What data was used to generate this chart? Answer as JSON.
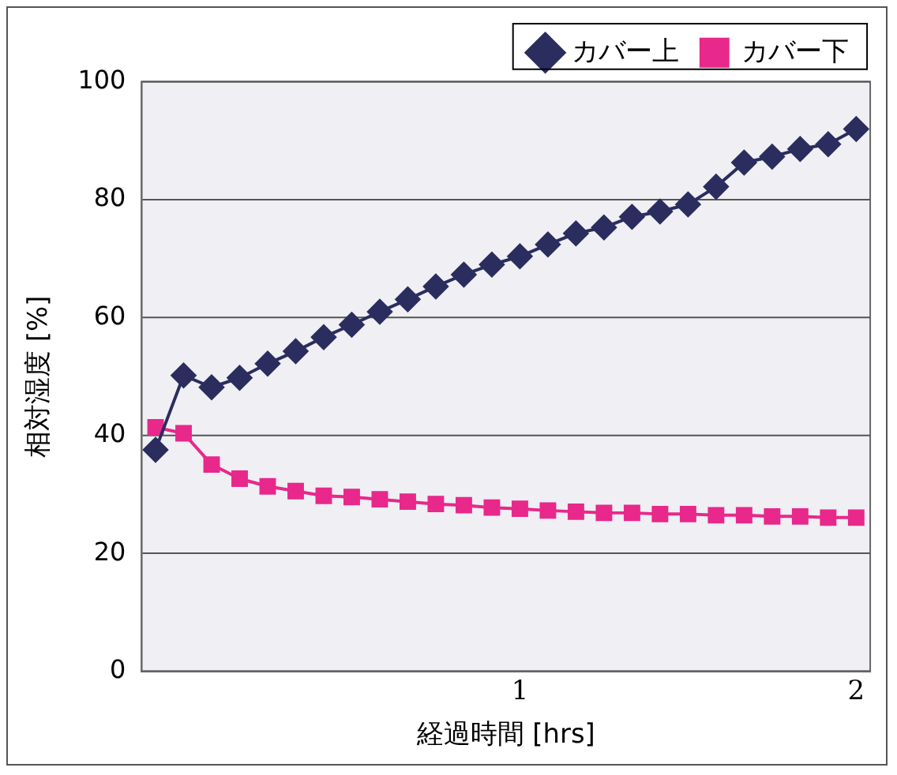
{
  "chart_data": {
    "type": "line",
    "xlabel": "経過時間 [hrs]",
    "ylabel": "相対湿度 [%]",
    "categories": [
      null,
      null,
      null,
      null,
      null,
      null,
      null,
      null,
      null,
      null,
      null,
      null,
      null,
      "1",
      null,
      null,
      null,
      null,
      null,
      null,
      null,
      null,
      null,
      null,
      null,
      "2"
    ],
    "series": [
      {
        "name": "カバー上",
        "color": "#2b2d5e",
        "marker": "diamond",
        "values": [
          37.6,
          50.2,
          48.2,
          49.8,
          52.2,
          54.3,
          56.7,
          58.8,
          61.0,
          63.1,
          65.3,
          67.3,
          69.0,
          70.4,
          72.4,
          74.3,
          75.3,
          77.1,
          78.0,
          79.2,
          82.2,
          86.3,
          87.3,
          88.6,
          89.4,
          92.0
        ]
      },
      {
        "name": "カバー下",
        "color": "#e8288a",
        "marker": "square",
        "values": [
          41.4,
          40.4,
          35.1,
          32.7,
          31.4,
          30.6,
          29.8,
          29.6,
          29.2,
          28.8,
          28.4,
          28.2,
          27.8,
          27.6,
          27.3,
          27.1,
          26.9,
          26.9,
          26.7,
          26.7,
          26.5,
          26.5,
          26.3,
          26.3,
          26.1,
          26.1
        ]
      }
    ],
    "ylim": [
      0,
      100
    ],
    "yticks": [
      0,
      20,
      40,
      60,
      80,
      100
    ],
    "grid": "y",
    "legend": "top right"
  }
}
